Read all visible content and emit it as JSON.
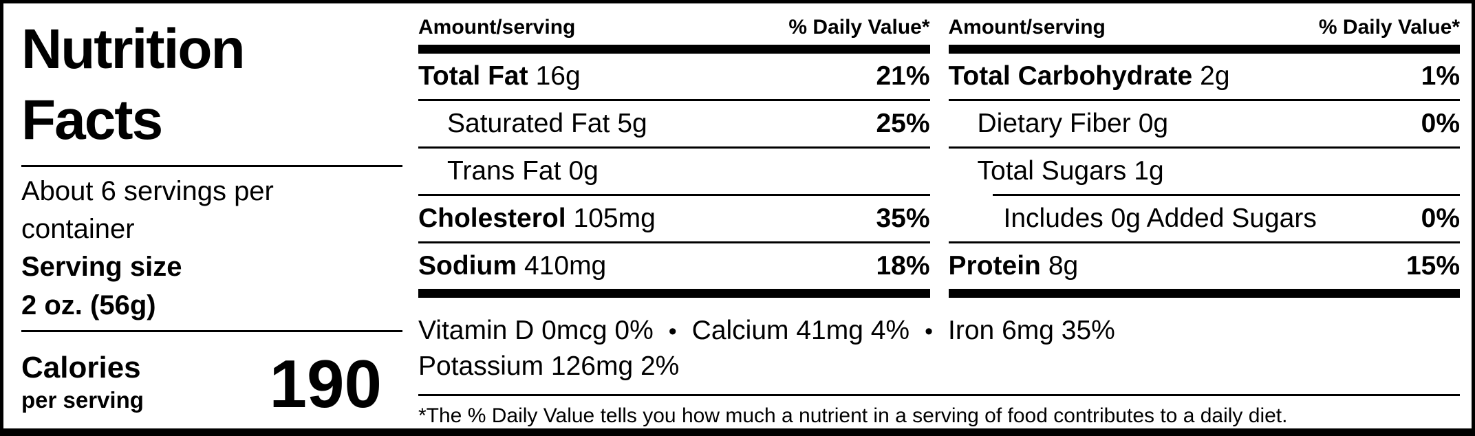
{
  "label": {
    "title": "Nutrition Facts",
    "servings_per_container": "About 6 servings per container",
    "serving_size_label": "Serving size",
    "serving_size_value": "2 oz. (56g)",
    "calories_label": "Calories",
    "calories_sublabel": "per serving",
    "calories_value": "190"
  },
  "columns": [
    {
      "header_left": "Amount/serving",
      "header_right": "% Daily Value*",
      "rows": [
        {
          "name": "Total Fat",
          "amount": "16g",
          "dv": "21%"
        },
        {
          "name": "Saturated Fat",
          "amount": "5g",
          "dv": "25%"
        },
        {
          "name": "Trans Fat",
          "amount": "0g",
          "dv": ""
        },
        {
          "name": "Cholesterol",
          "amount": "105mg",
          "dv": "35%"
        },
        {
          "name": "Sodium",
          "amount": "410mg",
          "dv": "18%"
        }
      ]
    },
    {
      "header_left": "Amount/serving",
      "header_right": "% Daily Value*",
      "rows": [
        {
          "name": "Total Carbohydrate",
          "amount": "2g",
          "dv": "1%"
        },
        {
          "name": "Dietary Fiber",
          "amount": "0g",
          "dv": "0%"
        },
        {
          "name": "Total Sugars",
          "amount": "1g",
          "dv": ""
        },
        {
          "name": "Includes 0g Added Sugars",
          "amount": "",
          "dv": "0%"
        },
        {
          "name": "Protein",
          "amount": "8g",
          "dv": "15%"
        }
      ]
    }
  ],
  "micronutrients": {
    "bullet": "•",
    "line1": [
      "Vitamin D 0mcg 0%",
      "Calcium 41mg 4%",
      "Iron 6mg 35%"
    ],
    "line2": [
      "Potassium 126mg 2%"
    ]
  },
  "footnote": "*The % Daily Value tells you how much a nutrient in a serving of food contributes to a daily diet."
}
